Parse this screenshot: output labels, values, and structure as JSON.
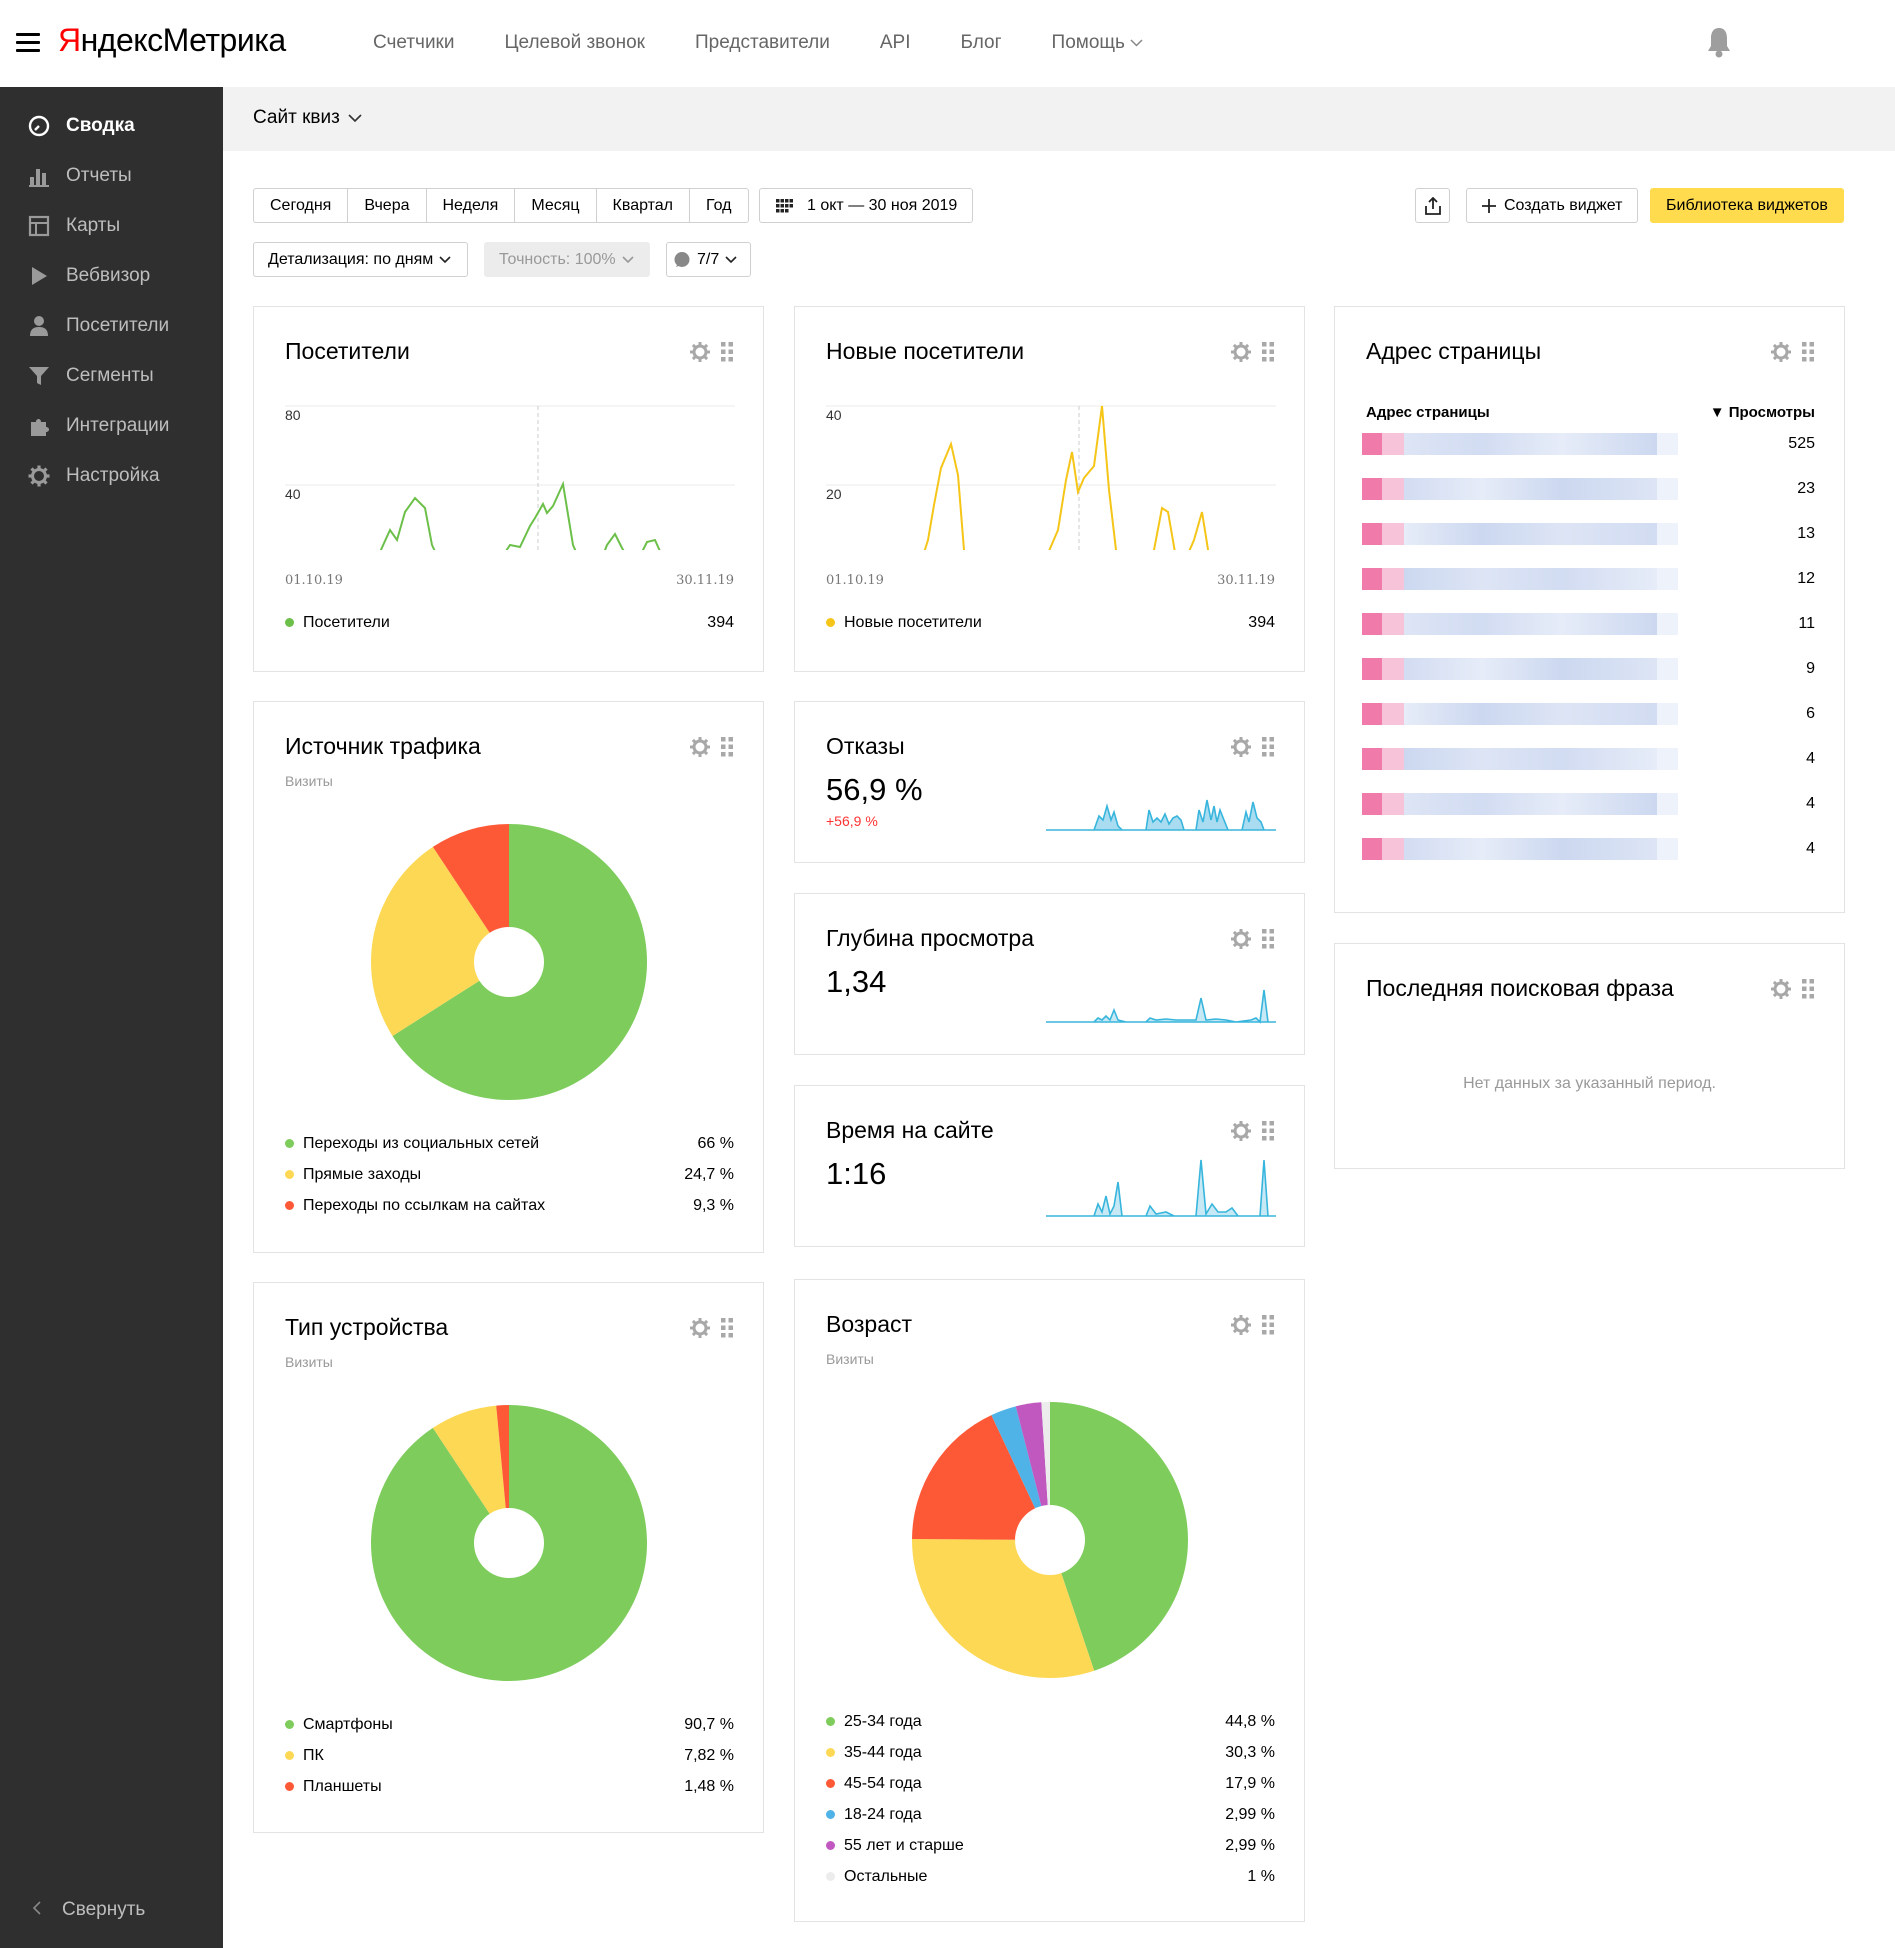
{
  "header": {
    "logo_brand": "Яндекс",
    "logo_product": "Метрика",
    "nav": [
      "Счетчики",
      "Целевой звонок",
      "Представители",
      "API",
      "Блог",
      "Помощь"
    ]
  },
  "sidebar": {
    "items": [
      {
        "label": "Сводка",
        "icon": "gauge-icon",
        "active": true
      },
      {
        "label": "Отчеты",
        "icon": "bar-chart-icon"
      },
      {
        "label": "Карты",
        "icon": "map-icon"
      },
      {
        "label": "Вебвизор",
        "icon": "play-icon"
      },
      {
        "label": "Посетители",
        "icon": "person-icon"
      },
      {
        "label": "Сегменты",
        "icon": "funnel-icon"
      },
      {
        "label": "Интеграции",
        "icon": "puzzle-icon"
      },
      {
        "label": "Настройка",
        "icon": "gear-icon"
      }
    ],
    "collapse_label": "Свернуть"
  },
  "subheader": {
    "site": "Сайт квиз"
  },
  "toolbar": {
    "periods": [
      "Сегодня",
      "Вчера",
      "Неделя",
      "Месяц",
      "Квартал",
      "Год"
    ],
    "date_range": "1 окт — 30 ноя 2019",
    "create_widget": "Создать виджет",
    "widget_library": "Библиотека виджетов",
    "detail": "Детализация: по дням",
    "accuracy": "Точность: 100%",
    "counter": "7/7"
  },
  "widgets": {
    "visitors": {
      "title": "Посетители",
      "legend": "Посетители",
      "total": "394",
      "date_start": "01.10.19",
      "date_end": "30.11.19",
      "y_ticks": [
        "80",
        "40"
      ],
      "color": "#6cc04a"
    },
    "new_visitors": {
      "title": "Новые посетители",
      "legend": "Новые посетители",
      "total": "394",
      "date_start": "01.10.19",
      "date_end": "30.11.19",
      "y_ticks": [
        "40",
        "20"
      ],
      "color": "#f5c518"
    },
    "traffic_source": {
      "title": "Источник трафика",
      "subtitle": "Визиты",
      "items": [
        {
          "label": "Переходы из социальных сетей",
          "value": "66 %",
          "pct": 66,
          "color": "#7dcc5c"
        },
        {
          "label": "Прямые заходы",
          "value": "24,7 %",
          "pct": 24.7,
          "color": "#fdd855"
        },
        {
          "label": "Переходы по ссылкам на сайтах",
          "value": "9,3 %",
          "pct": 9.3,
          "color": "#fe5937"
        }
      ]
    },
    "bounce": {
      "title": "Отказы",
      "value": "56,9 %",
      "delta": "+56,9 %"
    },
    "depth": {
      "title": "Глубина просмотра",
      "value": "1,34"
    },
    "time": {
      "title": "Время на сайте",
      "value": "1:16"
    },
    "device": {
      "title": "Тип устройства",
      "subtitle": "Визиты",
      "items": [
        {
          "label": "Смартфоны",
          "value": "90,7 %",
          "pct": 90.7,
          "color": "#7dcc5c"
        },
        {
          "label": "ПК",
          "value": "7,82 %",
          "pct": 7.82,
          "color": "#fdd855"
        },
        {
          "label": "Планшеты",
          "value": "1,48 %",
          "pct": 1.48,
          "color": "#fe5937"
        }
      ]
    },
    "age": {
      "title": "Возраст",
      "subtitle": "Визиты",
      "items": [
        {
          "label": "25-34 года",
          "value": "44,8 %",
          "pct": 44.8,
          "color": "#7dcc5c"
        },
        {
          "label": "35-44 года",
          "value": "30,3 %",
          "pct": 30.3,
          "color": "#fdd855"
        },
        {
          "label": "45-54 года",
          "value": "17,9 %",
          "pct": 17.9,
          "color": "#fe5937"
        },
        {
          "label": "18-24 года",
          "value": "2,99 %",
          "pct": 2.99,
          "color": "#4fb3e8"
        },
        {
          "label": "55 лет и старше",
          "value": "2,99 %",
          "pct": 2.99,
          "color": "#c058c0"
        },
        {
          "label": "Остальные",
          "value": "1 %",
          "pct": 1,
          "color": "#ececec"
        }
      ]
    },
    "page_address": {
      "title": "Адрес страницы",
      "col_page": "Адрес страницы",
      "col_views": "▼ Просмотры",
      "rows": [
        "525",
        "23",
        "13",
        "12",
        "11",
        "9",
        "6",
        "4",
        "4",
        "4"
      ]
    },
    "last_search": {
      "title": "Последняя поисковая фраза",
      "empty": "Нет данных за указанный период."
    }
  }
}
